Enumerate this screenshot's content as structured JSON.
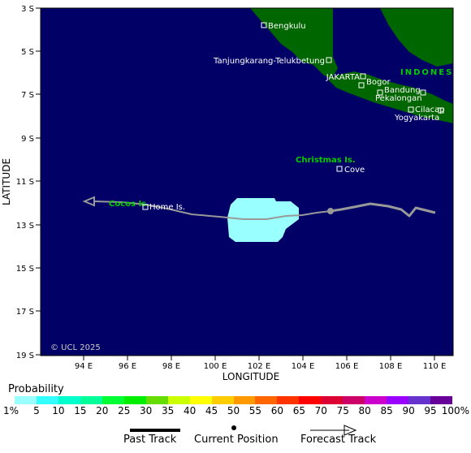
{
  "map": {
    "ocean_color": "#000066",
    "land_color": "#006600",
    "track_color": "#999999",
    "forecast_area_color": "#99ffff",
    "y_axis_label": "LATITUDE",
    "x_axis_label": "LONGITUDE",
    "lat_ticks": [
      "3 S",
      "5 S",
      "7 S",
      "9 S",
      "11 S",
      "13 S",
      "15 S",
      "17 S",
      "19 S"
    ],
    "lon_ticks": [
      "94 E",
      "96 E",
      "98 E",
      "100 E",
      "102 E",
      "104 E",
      "106 E",
      "108 E",
      "110 E"
    ],
    "copyright": "© UCL 2025"
  },
  "places": {
    "bengkulu": "Bengkulu",
    "tanjungkarang": "Tanjungkarang-Telukbetung",
    "indonesia": "INDONES",
    "jakarta": "JAKARTA",
    "bogor": "Bogor",
    "bandung": "Bandung",
    "pekalongan": "Pekalongan",
    "cilacap": "Cilacap",
    "yogyakarta": "Yogyakarta",
    "christmas": "Christmas Is.",
    "cove": "Cove",
    "cocos": "Cocos Is.",
    "home": "Home Is."
  },
  "probability": {
    "title": "Probability",
    "labels": [
      "1%",
      "5",
      "10",
      "15",
      "20",
      "25",
      "30",
      "35",
      "40",
      "45",
      "50",
      "55",
      "60",
      "65",
      "70",
      "75",
      "80",
      "85",
      "90",
      "95",
      "100%"
    ],
    "colors": [
      "#99ffff",
      "#33ffff",
      "#00ffcc",
      "#00ff99",
      "#00ff33",
      "#00ee00",
      "#66dd00",
      "#ccff00",
      "#ffff00",
      "#ffcc00",
      "#ff9900",
      "#ff6600",
      "#ff3300",
      "#ff0000",
      "#dd0033",
      "#cc0066",
      "#cc00cc",
      "#9900ff",
      "#6633cc",
      "#660099"
    ]
  },
  "legend": {
    "past_track": "Past Track",
    "current_position": "Current Position",
    "forecast_track": "Forecast Track"
  }
}
